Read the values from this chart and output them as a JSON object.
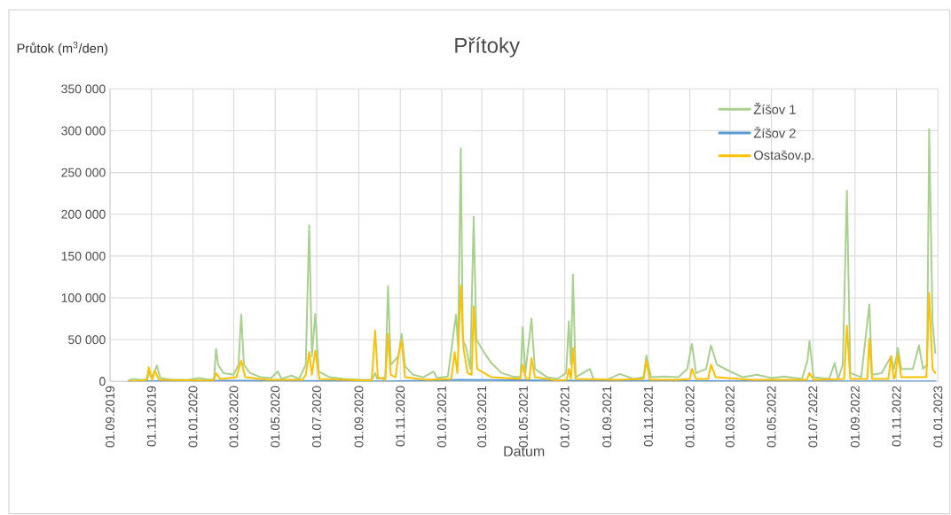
{
  "chart_data": {
    "type": "line",
    "title": "Přítoky",
    "xlabel": "Datum",
    "ylabel": "Průtok (m$^{3}$/den)",
    "xlim": [
      "2019-09-01",
      "2023-01-01"
    ],
    "xticks": [
      {
        "value": "2019-09-01",
        "label": "01.09.2019"
      },
      {
        "value": "2019-11-01",
        "label": "01.11.2019"
      },
      {
        "value": "2020-01-01",
        "label": "01.01.2020"
      },
      {
        "value": "2020-03-01",
        "label": "01.03.2020"
      },
      {
        "value": "2020-05-01",
        "label": "01.05.2020"
      },
      {
        "value": "2020-07-01",
        "label": "01.07.2020"
      },
      {
        "value": "2020-09-01",
        "label": "01.09.2020"
      },
      {
        "value": "2020-11-01",
        "label": "01.11.2020"
      },
      {
        "value": "2021-01-01",
        "label": "01.01.2021"
      },
      {
        "value": "2021-03-01",
        "label": "01.03.2021"
      },
      {
        "value": "2021-05-01",
        "label": "01.05.2021"
      },
      {
        "value": "2021-07-01",
        "label": "01.07.2021"
      },
      {
        "value": "2021-09-01",
        "label": "01.09.2021"
      },
      {
        "value": "2021-11-01",
        "label": "01.11.2021"
      },
      {
        "value": "2022-01-01",
        "label": "01.01.2022"
      },
      {
        "value": "2022-03-01",
        "label": "01.03.2022"
      },
      {
        "value": "2022-05-01",
        "label": "01.05.2022"
      },
      {
        "value": "2022-07-01",
        "label": "01.07.2022"
      },
      {
        "value": "2022-09-01",
        "label": "01.09.2022"
      },
      {
        "value": "2022-11-01",
        "label": "01.11.2022"
      },
      {
        "value": "2023-01-01",
        "label": "01.01.2023"
      }
    ],
    "ylim": [
      0,
      350000
    ],
    "yticks": [
      0,
      {
        "value": 50000,
        "label": "50 000"
      },
      {
        "value": 100000,
        "label": "100 000"
      },
      {
        "value": 150000,
        "label": "150 000"
      },
      {
        "value": 200000,
        "label": "200 000"
      },
      {
        "value": 250000,
        "label": "250 000"
      },
      {
        "value": 300000,
        "label": "300 000"
      },
      {
        "value": 350000,
        "label": "350 000"
      }
    ],
    "grid": true,
    "legend": "top right",
    "series": [
      {
        "name": "Žíšov 1",
        "color": "#a9d18e",
        "x": [
          "2019-09-28",
          "2019-10-05",
          "2019-10-15",
          "2019-10-26",
          "2019-10-28",
          "2019-11-01",
          "2019-11-09",
          "2019-11-14",
          "2019-12-01",
          "2019-12-25",
          "2020-01-10",
          "2020-01-25",
          "2020-02-01",
          "2020-02-04",
          "2020-02-07",
          "2020-02-15",
          "2020-03-01",
          "2020-03-08",
          "2020-03-12",
          "2020-03-16",
          "2020-03-25",
          "2020-04-10",
          "2020-04-25",
          "2020-05-05",
          "2020-05-10",
          "2020-05-25",
          "2020-06-05",
          "2020-06-15",
          "2020-06-20",
          "2020-06-24",
          "2020-06-29",
          "2020-07-04",
          "2020-07-20",
          "2020-08-10",
          "2020-09-01",
          "2020-09-20",
          "2020-09-25",
          "2020-09-28",
          "2020-10-10",
          "2020-10-14",
          "2020-10-18",
          "2020-10-29",
          "2020-11-03",
          "2020-11-08",
          "2020-11-20",
          "2020-12-05",
          "2020-12-20",
          "2020-12-25",
          "2021-01-10",
          "2021-01-22",
          "2021-01-25",
          "2021-01-29",
          "2021-02-01",
          "2021-02-06",
          "2021-02-12",
          "2021-02-17",
          "2021-02-21",
          "2021-03-04",
          "2021-03-15",
          "2021-03-30",
          "2021-04-15",
          "2021-04-27",
          "2021-04-30",
          "2021-05-04",
          "2021-05-13",
          "2021-05-18",
          "2021-06-05",
          "2021-06-20",
          "2021-07-03",
          "2021-07-07",
          "2021-07-10",
          "2021-07-13",
          "2021-07-17",
          "2021-08-07",
          "2021-08-12",
          "2021-09-01",
          "2021-09-20",
          "2021-10-10",
          "2021-10-25",
          "2021-10-29",
          "2021-11-05",
          "2021-11-25",
          "2021-12-15",
          "2021-12-28",
          "2022-01-04",
          "2022-01-10",
          "2022-01-25",
          "2022-02-01",
          "2022-02-10",
          "2022-03-01",
          "2022-03-20",
          "2022-04-10",
          "2022-05-01",
          "2022-05-20",
          "2022-06-15",
          "2022-06-23",
          "2022-06-26",
          "2022-07-02",
          "2022-07-25",
          "2022-08-02",
          "2022-08-07",
          "2022-08-14",
          "2022-08-20",
          "2022-08-25",
          "2022-09-10",
          "2022-09-22",
          "2022-09-26",
          "2022-10-10",
          "2022-10-24",
          "2022-10-28",
          "2022-11-01",
          "2022-11-03",
          "2022-11-05",
          "2022-11-08",
          "2022-11-25",
          "2022-12-04",
          "2022-12-10",
          "2022-12-16",
          "2022-12-19",
          "2022-12-24",
          "2022-12-28"
        ],
        "values": [
          1000,
          3000,
          2000,
          2000,
          12000,
          4000,
          19000,
          4000,
          2000,
          2000,
          4000,
          2000,
          3000,
          39000,
          20000,
          10000,
          8000,
          20000,
          80000,
          20000,
          10000,
          5000,
          4000,
          12000,
          3000,
          7000,
          3000,
          20000,
          187000,
          30000,
          81000,
          12000,
          5000,
          3000,
          2000,
          2000,
          10000,
          3000,
          5000,
          114000,
          20000,
          30000,
          57000,
          18000,
          8000,
          5000,
          12000,
          4000,
          6000,
          80000,
          42000,
          279000,
          50000,
          40000,
          15000,
          197000,
          50000,
          35000,
          22000,
          10000,
          6000,
          5000,
          65000,
          10000,
          75000,
          15000,
          5000,
          3000,
          10000,
          72000,
          20000,
          128000,
          5000,
          15000,
          3000,
          2000,
          9000,
          3000,
          5000,
          31000,
          5000,
          6000,
          5000,
          15000,
          45000,
          10000,
          15000,
          43000,
          20000,
          12000,
          5000,
          8000,
          4000,
          6000,
          3000,
          25000,
          48000,
          5000,
          3000,
          22000,
          3000,
          20000,
          228000,
          10000,
          5000,
          92000,
          8000,
          10000,
          30000,
          15000,
          30000,
          40000,
          30000,
          15000,
          15000,
          43000,
          15000,
          20000,
          302000,
          70000,
          34000
        ]
      },
      {
        "name": "Žíšov 2",
        "color": "#5b9bd5",
        "x": [
          "2019-09-28",
          "2020-03-12",
          "2020-10-14",
          "2021-01-29",
          "2021-07-13",
          "2022-08-20",
          "2022-12-28"
        ],
        "values": [
          0,
          1000,
          0,
          2000,
          1000,
          0,
          0
        ]
      },
      {
        "name": "Ostašov.p.",
        "color": "#ffc000",
        "x": [
          "2019-09-28",
          "2019-10-15",
          "2019-10-25",
          "2019-10-28",
          "2019-11-02",
          "2019-11-06",
          "2019-11-12",
          "2020-01-25",
          "2020-02-01",
          "2020-02-04",
          "2020-02-10",
          "2020-03-05",
          "2020-03-12",
          "2020-03-18",
          "2020-04-20",
          "2020-06-10",
          "2020-06-15",
          "2020-06-20",
          "2020-06-24",
          "2020-06-29",
          "2020-07-05",
          "2020-09-20",
          "2020-09-25",
          "2020-09-29",
          "2020-10-10",
          "2020-10-14",
          "2020-10-18",
          "2020-10-25",
          "2020-10-29",
          "2020-11-03",
          "2020-11-08",
          "2020-12-10",
          "2021-01-15",
          "2021-01-20",
          "2021-01-24",
          "2021-01-29",
          "2021-02-02",
          "2021-02-08",
          "2021-02-14",
          "2021-02-17",
          "2021-02-22",
          "2021-03-15",
          "2021-04-26",
          "2021-04-30",
          "2021-05-05",
          "2021-05-10",
          "2021-05-13",
          "2021-05-18",
          "2021-06-20",
          "2021-07-04",
          "2021-07-07",
          "2021-07-10",
          "2021-07-13",
          "2021-07-17",
          "2021-09-15",
          "2021-10-25",
          "2021-10-29",
          "2021-11-03",
          "2021-12-15",
          "2022-01-01",
          "2022-01-04",
          "2022-01-10",
          "2022-01-28",
          "2022-02-01",
          "2022-02-08",
          "2022-04-01",
          "2022-06-22",
          "2022-06-26",
          "2022-07-02",
          "2022-08-16",
          "2022-08-20",
          "2022-08-25",
          "2022-09-19",
          "2022-09-22",
          "2022-09-26",
          "2022-10-20",
          "2022-10-24",
          "2022-10-28",
          "2022-10-30",
          "2022-11-03",
          "2022-11-08",
          "2022-12-04",
          "2022-12-15",
          "2022-12-19",
          "2022-12-24",
          "2022-12-28"
        ],
        "values": [
          0,
          1000,
          2000,
          17000,
          2000,
          13000,
          2000,
          1000,
          2000,
          10000,
          3000,
          5000,
          25000,
          5000,
          2000,
          2000,
          8000,
          35000,
          8000,
          37000,
          3000,
          1000,
          61000,
          5000,
          2000,
          57000,
          8000,
          5000,
          30000,
          49000,
          5000,
          2000,
          3000,
          35000,
          10000,
          115000,
          40000,
          10000,
          8000,
          90000,
          15000,
          5000,
          3000,
          20000,
          3000,
          3000,
          28000,
          5000,
          1000,
          2000,
          15000,
          3000,
          40000,
          3000,
          2000,
          3000,
          25000,
          2000,
          2000,
          3000,
          15000,
          3000,
          3000,
          20000,
          5000,
          2000,
          2000,
          10000,
          2000,
          3000,
          67000,
          3000,
          3000,
          51000,
          3000,
          3000,
          30000,
          3000,
          5000,
          32000,
          5000,
          5000,
          5000,
          106000,
          15000,
          10000
        ]
      }
    ]
  }
}
